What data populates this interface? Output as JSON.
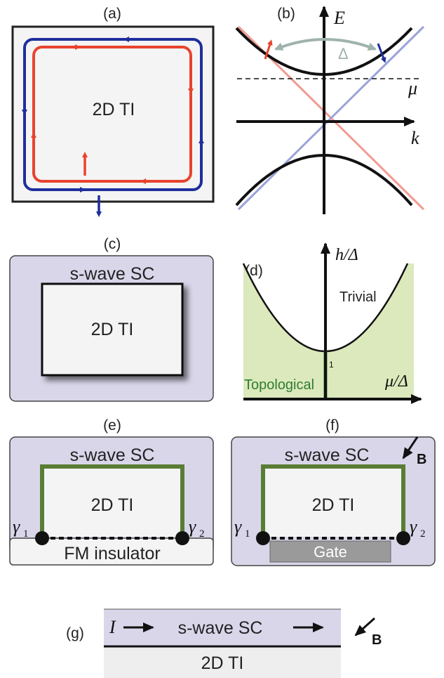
{
  "panels": {
    "a": {
      "label": "(a)",
      "center_text": "2D TI"
    },
    "b": {
      "label": "(b)",
      "energy_axis": "E",
      "momentum_axis": "k",
      "gap_symbol": "Δ",
      "chemical_potential": "μ"
    },
    "c": {
      "label": "(c)",
      "outer_text": "s-wave SC",
      "inner_text": "2D TI"
    },
    "d": {
      "label": "(d)",
      "y_axis": "h/Δ",
      "x_axis": "μ/Δ",
      "trivial_text": "Trivial",
      "topological_text": "Topological",
      "intercept_tick": "1"
    },
    "e": {
      "label": "(e)",
      "outer_text": "s-wave SC",
      "inner_text": "2D TI",
      "bottom_text": "FM insulator",
      "gamma_left": "γ",
      "gamma_left_sub": "1",
      "gamma_right": "γ",
      "gamma_right_sub": "2"
    },
    "f": {
      "label": "(f)",
      "outer_text": "s-wave SC",
      "inner_text": "2D TI",
      "gate_text": "Gate",
      "field_text": "B",
      "gamma_left": "γ",
      "gamma_left_sub": "1",
      "gamma_right": "γ",
      "gamma_right_sub": "2"
    },
    "g": {
      "label": "(g)",
      "current_text": "I",
      "top_text": "s-wave SC",
      "bottom_text": "2D TI",
      "field_text": "B"
    }
  },
  "colors": {
    "sc_fill": "#d9d6ea",
    "ti_fill": "#f4f4f4",
    "topological_fill": "#dce9bc",
    "topological_text": "#2f7d32",
    "green_edge": "#5a7d35",
    "red_edge": "#e8432e",
    "blue_edge": "#1f2e9c",
    "light_red": "#f29a91",
    "light_blue": "#9aa3d8",
    "gap_arrow": "#9fb3ad",
    "gate_fill": "#9a9a9a"
  }
}
